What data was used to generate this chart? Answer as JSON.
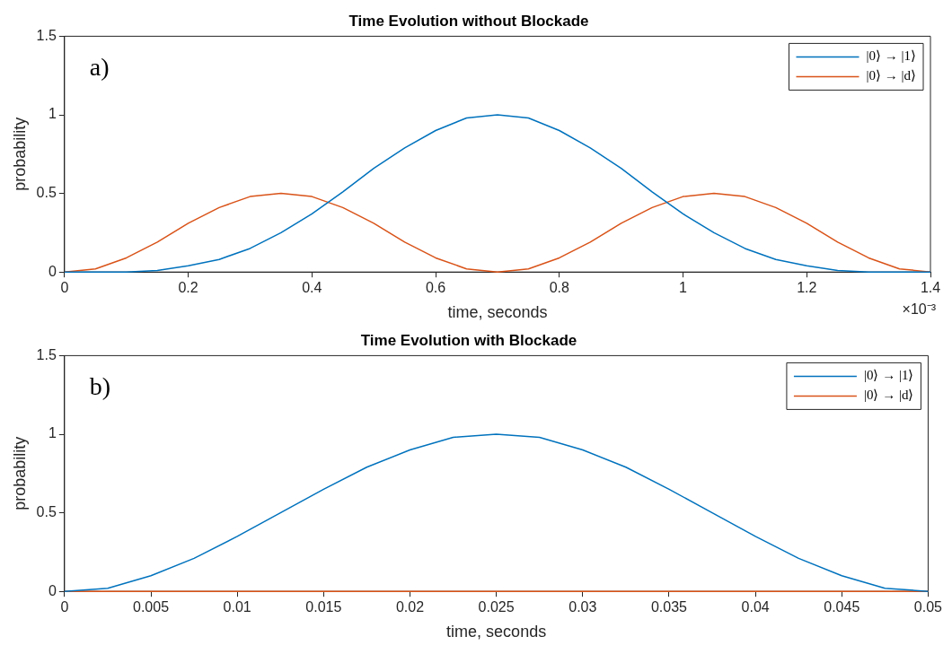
{
  "chart_data": [
    {
      "type": "line",
      "title": "Time Evolution without Blockade",
      "xlabel": "time, seconds",
      "ylabel": "probability",
      "annotations": [
        "a)",
        "×10⁻³"
      ],
      "legend": "top right",
      "xlim": [
        0,
        1.4
      ],
      "ylim": [
        0,
        1.5
      ],
      "xticks": [
        0,
        0.2,
        0.4,
        0.6,
        0.8,
        1,
        1.2,
        1.4
      ],
      "yticks": [
        0,
        0.5,
        1,
        1.5
      ],
      "x": [
        0,
        0.05,
        0.1,
        0.15,
        0.2,
        0.25,
        0.3,
        0.35,
        0.4,
        0.45,
        0.5,
        0.55,
        0.6,
        0.65,
        0.7,
        0.75,
        0.8,
        0.85,
        0.9,
        0.95,
        1,
        1.05,
        1.1,
        1.15,
        1.2,
        1.25,
        1.3,
        1.35,
        1.4
      ],
      "series": [
        {
          "name": "|0⟩ → |1⟩",
          "color": "#0072bd",
          "values": [
            0,
            0,
            0,
            0.01,
            0.04,
            0.08,
            0.15,
            0.25,
            0.37,
            0.51,
            0.66,
            0.79,
            0.9,
            0.98,
            1,
            0.98,
            0.9,
            0.79,
            0.66,
            0.51,
            0.37,
            0.25,
            0.15,
            0.08,
            0.04,
            0.01,
            0,
            0,
            0
          ]
        },
        {
          "name": "|0⟩ → |d⟩",
          "color": "#d95319",
          "values": [
            0,
            0.02,
            0.09,
            0.19,
            0.31,
            0.41,
            0.48,
            0.5,
            0.48,
            0.41,
            0.31,
            0.19,
            0.09,
            0.02,
            0,
            0.02,
            0.09,
            0.19,
            0.31,
            0.41,
            0.48,
            0.5,
            0.48,
            0.41,
            0.31,
            0.19,
            0.09,
            0.02,
            0
          ]
        }
      ]
    },
    {
      "type": "line",
      "title": "Time Evolution with Blockade",
      "xlabel": "time, seconds",
      "ylabel": "probability",
      "annotations": [
        "b)"
      ],
      "legend": "top right",
      "xlim": [
        0,
        0.05
      ],
      "ylim": [
        0,
        1.5
      ],
      "xticks": [
        0,
        0.005,
        0.01,
        0.015,
        0.02,
        0.025,
        0.03,
        0.035,
        0.04,
        0.045,
        0.05
      ],
      "yticks": [
        0,
        0.5,
        1,
        1.5
      ],
      "x": [
        0,
        0.0025,
        0.005,
        0.0075,
        0.01,
        0.0125,
        0.015,
        0.0175,
        0.02,
        0.0225,
        0.025,
        0.0275,
        0.03,
        0.0325,
        0.035,
        0.0375,
        0.04,
        0.0425,
        0.045,
        0.0475,
        0.05
      ],
      "series": [
        {
          "name": "|0⟩ → |1⟩",
          "color": "#0072bd",
          "values": [
            0,
            0.02,
            0.1,
            0.21,
            0.35,
            0.5,
            0.65,
            0.79,
            0.9,
            0.98,
            1,
            0.98,
            0.9,
            0.79,
            0.65,
            0.5,
            0.35,
            0.21,
            0.1,
            0.02,
            0
          ]
        },
        {
          "name": "|0⟩ → |d⟩",
          "color": "#d95319",
          "values": [
            0,
            0,
            0,
            0,
            0,
            0,
            0,
            0,
            0,
            0,
            0,
            0,
            0,
            0,
            0,
            0,
            0,
            0,
            0,
            0,
            0
          ]
        }
      ]
    }
  ]
}
